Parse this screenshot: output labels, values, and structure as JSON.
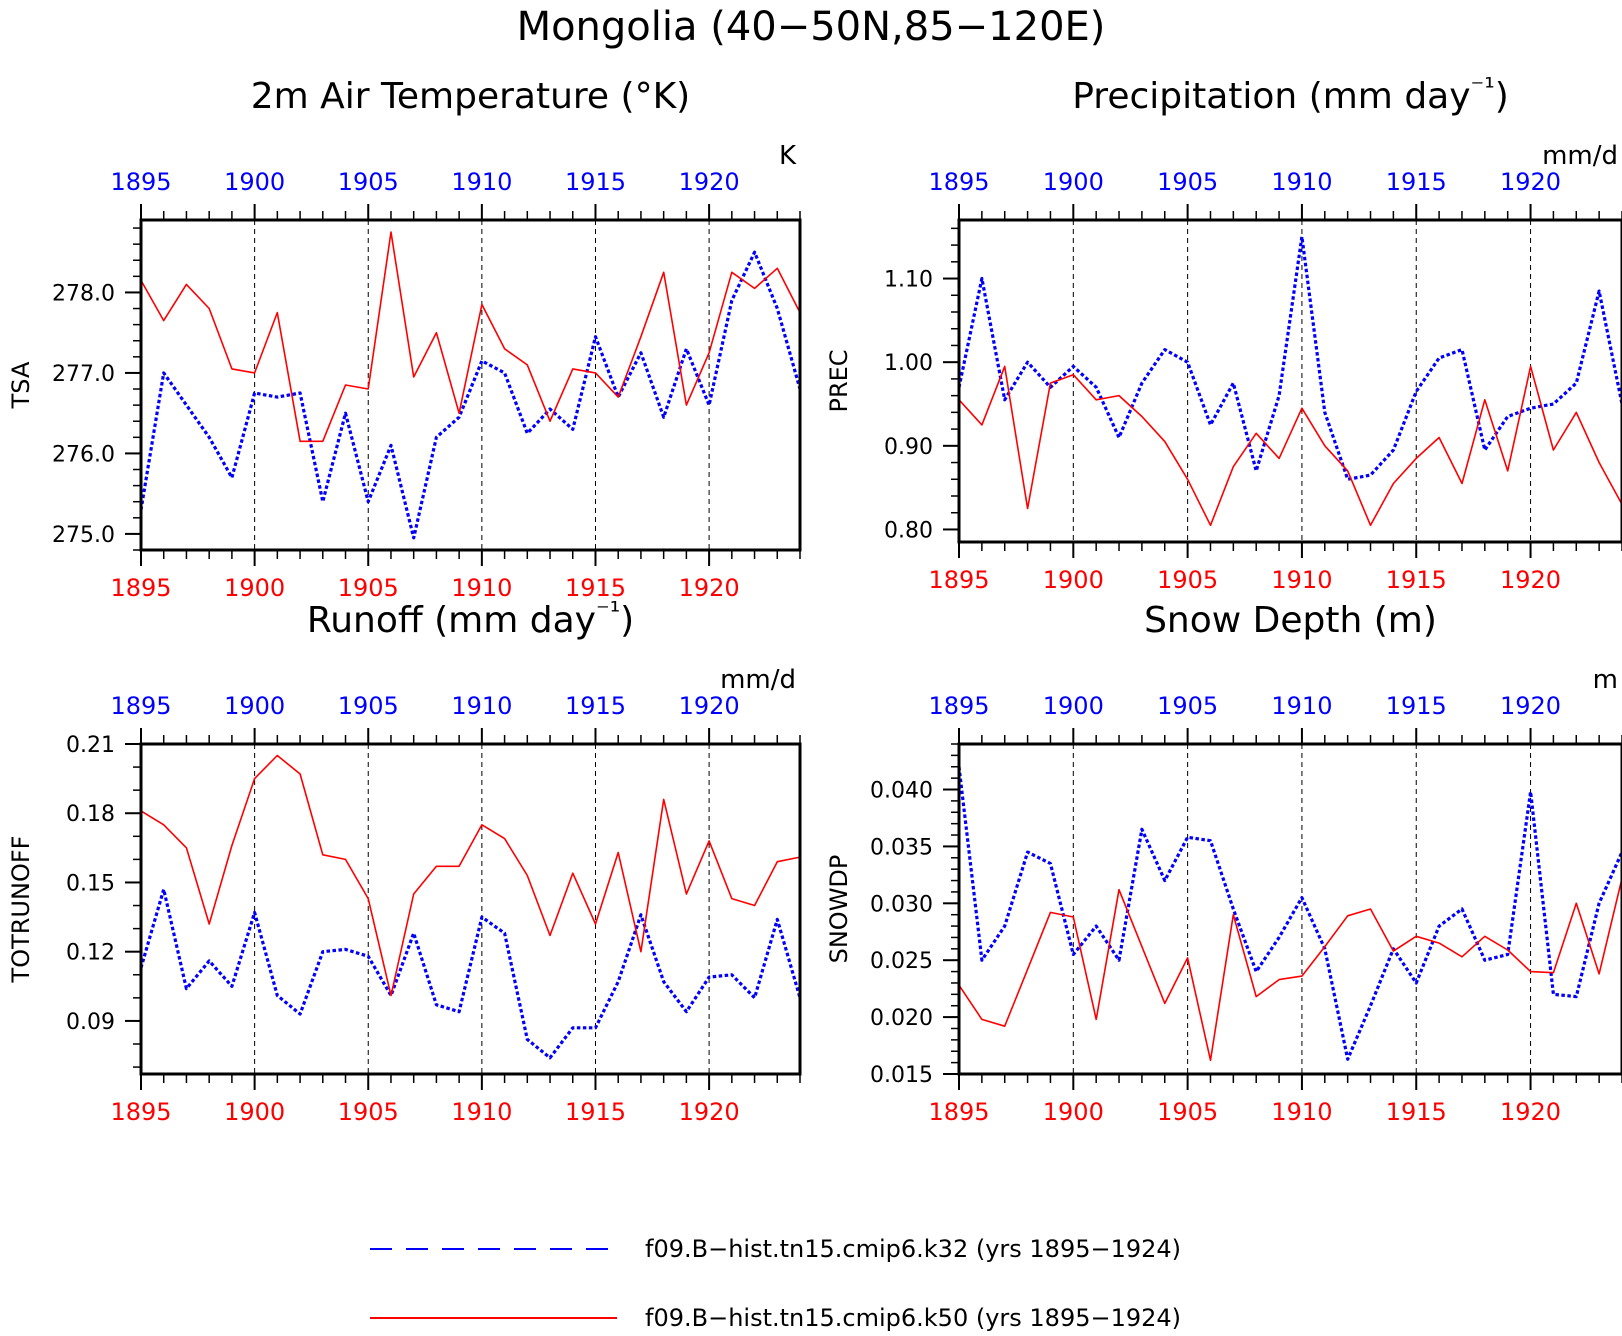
{
  "title": "Mongolia (40−50N,85−120E)",
  "colors": {
    "k32": "#0000ff",
    "k50": "#ff0000",
    "axis": "#000000",
    "grid": "#000000"
  },
  "legend": {
    "k32": "f09.B−hist.tn15.cmip6.k32 (yrs 1895−1924)",
    "k50": "f09.B−hist.tn15.cmip6.k50 (yrs 1895−1924)"
  },
  "chart_data": [
    {
      "type": "line",
      "title": "2m Air Temperature (°K)",
      "unit": "K",
      "ylabel": "TSA",
      "xlim": [
        1895,
        1924
      ],
      "ylim": [
        274.8,
        278.9
      ],
      "yticks": [
        275.0,
        276.0,
        277.0,
        278.0
      ],
      "ytick_labels": [
        "275.0",
        "276.0",
        "277.0",
        "278.0"
      ],
      "yminor": 0.2,
      "xticks": [
        1895,
        1900,
        1905,
        1910,
        1915,
        1920
      ],
      "x": [
        1895,
        1896,
        1897,
        1898,
        1899,
        1900,
        1901,
        1902,
        1903,
        1904,
        1905,
        1906,
        1907,
        1908,
        1909,
        1910,
        1911,
        1912,
        1913,
        1914,
        1915,
        1916,
        1917,
        1918,
        1919,
        1920,
        1921,
        1922,
        1923,
        1924
      ],
      "series": [
        {
          "name": "f09.B−hist.tn15.cmip6.k32",
          "color": "#0000ff",
          "dash": "dotted",
          "values": [
            275.3,
            277.0,
            276.6,
            276.2,
            275.7,
            276.75,
            276.7,
            276.75,
            275.4,
            276.5,
            275.4,
            276.1,
            274.95,
            276.2,
            276.45,
            277.15,
            277.0,
            276.25,
            276.55,
            276.3,
            277.45,
            276.7,
            277.25,
            276.45,
            277.3,
            276.6,
            277.9,
            278.5,
            277.8,
            276.8
          ]
        },
        {
          "name": "f09.B−hist.tn15.cmip6.k50",
          "color": "#ff0000",
          "dash": "solid",
          "values": [
            278.15,
            277.65,
            278.1,
            277.8,
            277.05,
            277.0,
            277.75,
            276.15,
            276.15,
            276.85,
            276.8,
            278.75,
            276.95,
            277.5,
            276.5,
            277.85,
            277.3,
            277.1,
            276.4,
            277.05,
            277.0,
            276.7,
            277.45,
            278.25,
            276.6,
            277.25,
            278.25,
            278.05,
            278.3,
            277.75
          ]
        }
      ]
    },
    {
      "type": "line",
      "title": "Precipitation (mm day⁻¹)",
      "unit": "mm/d",
      "ylabel": "PREC",
      "xlim": [
        1895,
        1924
      ],
      "ylim": [
        0.785,
        1.17
      ],
      "yticks": [
        0.8,
        0.9,
        1.0,
        1.1
      ],
      "ytick_labels": [
        "0.80",
        "0.90",
        "1.00",
        "1.10"
      ],
      "yminor": 0.02,
      "xticks": [
        1895,
        1900,
        1905,
        1910,
        1915,
        1920
      ],
      "x": [
        1895,
        1896,
        1897,
        1898,
        1899,
        1900,
        1901,
        1902,
        1903,
        1904,
        1905,
        1906,
        1907,
        1908,
        1909,
        1910,
        1911,
        1912,
        1913,
        1914,
        1915,
        1916,
        1917,
        1918,
        1919,
        1920,
        1921,
        1922,
        1923,
        1924
      ],
      "series": [
        {
          "name": "f09.B−hist.tn15.cmip6.k32",
          "color": "#0000ff",
          "dash": "dotted",
          "values": [
            0.97,
            1.1,
            0.955,
            1.0,
            0.97,
            0.995,
            0.97,
            0.91,
            0.975,
            1.015,
            1.0,
            0.925,
            0.975,
            0.87,
            0.96,
            1.15,
            0.94,
            0.86,
            0.865,
            0.895,
            0.965,
            1.005,
            1.015,
            0.895,
            0.935,
            0.945,
            0.95,
            0.975,
            1.085,
            0.95
          ]
        },
        {
          "name": "f09.B−hist.tn15.cmip6.k50",
          "color": "#ff0000",
          "dash": "solid",
          "values": [
            0.955,
            0.925,
            0.995,
            0.825,
            0.975,
            0.985,
            0.955,
            0.96,
            0.935,
            0.905,
            0.86,
            0.805,
            0.875,
            0.915,
            0.885,
            0.945,
            0.9,
            0.87,
            0.805,
            0.855,
            0.885,
            0.91,
            0.855,
            0.955,
            0.87,
            0.995,
            0.895,
            0.94,
            0.88,
            0.83
          ]
        }
      ]
    },
    {
      "type": "line",
      "title": "Runoff (mm day⁻¹)",
      "unit": "mm/d",
      "ylabel": "TOTRUNOFF",
      "xlim": [
        1895,
        1924
      ],
      "ylim": [
        0.067,
        0.21
      ],
      "yticks": [
        0.09,
        0.12,
        0.15,
        0.18,
        0.21
      ],
      "ytick_labels": [
        "0.09",
        "0.12",
        "0.15",
        "0.18",
        "0.21"
      ],
      "yminor": 0.01,
      "xticks": [
        1895,
        1900,
        1905,
        1910,
        1915,
        1920
      ],
      "x": [
        1895,
        1896,
        1897,
        1898,
        1899,
        1900,
        1901,
        1902,
        1903,
        1904,
        1905,
        1906,
        1907,
        1908,
        1909,
        1910,
        1911,
        1912,
        1913,
        1914,
        1915,
        1916,
        1917,
        1918,
        1919,
        1920,
        1921,
        1922,
        1923,
        1924
      ],
      "series": [
        {
          "name": "f09.B−hist.tn15.cmip6.k32",
          "color": "#0000ff",
          "dash": "dotted",
          "values": [
            0.113,
            0.147,
            0.104,
            0.116,
            0.105,
            0.137,
            0.101,
            0.093,
            0.12,
            0.121,
            0.118,
            0.101,
            0.128,
            0.097,
            0.094,
            0.135,
            0.128,
            0.082,
            0.074,
            0.087,
            0.087,
            0.107,
            0.136,
            0.107,
            0.094,
            0.109,
            0.11,
            0.1,
            0.134,
            0.1
          ]
        },
        {
          "name": "f09.B−hist.tn15.cmip6.k50",
          "color": "#ff0000",
          "dash": "solid",
          "values": [
            0.181,
            0.175,
            0.165,
            0.132,
            0.166,
            0.195,
            0.205,
            0.197,
            0.162,
            0.16,
            0.143,
            0.101,
            0.145,
            0.157,
            0.157,
            0.175,
            0.169,
            0.153,
            0.127,
            0.154,
            0.132,
            0.163,
            0.12,
            0.186,
            0.145,
            0.168,
            0.143,
            0.14,
            0.159,
            0.161
          ]
        }
      ]
    },
    {
      "type": "line",
      "title": "Snow Depth (m)",
      "unit": "m",
      "ylabel": "SNOWDP",
      "xlim": [
        1895,
        1924
      ],
      "ylim": [
        0.015,
        0.044
      ],
      "yticks": [
        0.015,
        0.02,
        0.025,
        0.03,
        0.035,
        0.04
      ],
      "ytick_labels": [
        "0.015",
        "0.020",
        "0.025",
        "0.030",
        "0.035",
        "0.040"
      ],
      "yminor": 0.001,
      "xticks": [
        1895,
        1900,
        1905,
        1910,
        1915,
        1920
      ],
      "x": [
        1895,
        1896,
        1897,
        1898,
        1899,
        1900,
        1901,
        1902,
        1903,
        1904,
        1905,
        1906,
        1907,
        1908,
        1909,
        1910,
        1911,
        1912,
        1913,
        1914,
        1915,
        1916,
        1917,
        1918,
        1919,
        1920,
        1921,
        1922,
        1923,
        1924
      ],
      "series": [
        {
          "name": "f09.B−hist.tn15.cmip6.k32",
          "color": "#0000ff",
          "dash": "dotted",
          "values": [
            0.042,
            0.025,
            0.028,
            0.0345,
            0.0335,
            0.0255,
            0.028,
            0.025,
            0.0365,
            0.032,
            0.0358,
            0.0355,
            0.0295,
            0.024,
            0.027,
            0.0305,
            0.026,
            0.0163,
            0.021,
            0.026,
            0.023,
            0.028,
            0.0295,
            0.025,
            0.0255,
            0.0398,
            0.022,
            0.0218,
            0.03,
            0.0345
          ]
        },
        {
          "name": "f09.B−hist.tn15.cmip6.k50",
          "color": "#ff0000",
          "dash": "solid",
          "values": [
            0.0228,
            0.0198,
            0.0192,
            0.0242,
            0.0292,
            0.0288,
            0.0198,
            0.0312,
            0.0262,
            0.0212,
            0.0252,
            0.0162,
            0.029,
            0.0218,
            0.0233,
            0.0236,
            0.0262,
            0.0289,
            0.0295,
            0.0258,
            0.0271,
            0.0265,
            0.0253,
            0.0271,
            0.0259,
            0.024,
            0.0239,
            0.03,
            0.0238,
            0.0322
          ]
        }
      ]
    }
  ]
}
